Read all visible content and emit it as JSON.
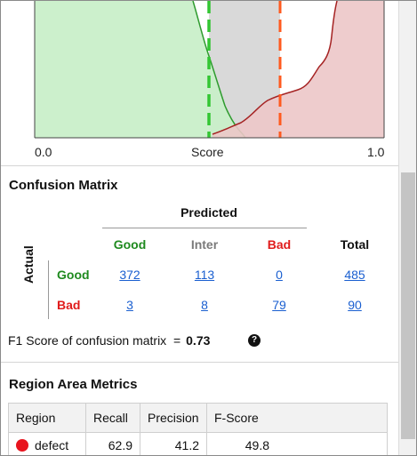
{
  "chart": {
    "xlabel": "Score",
    "x_min_label": "0.0",
    "x_max_label": "1.0",
    "colors": {
      "good": "#2e9b2e",
      "good_fill": "#c9efc9",
      "bad": "#a52323",
      "bad_fill": "#ecc6c8",
      "inter_fill": "#d9d9d9",
      "low_threshold": "#33c633",
      "high_threshold": "#ff5a1f"
    }
  },
  "confusion_matrix": {
    "title": "Confusion Matrix",
    "predicted_label": "Predicted",
    "actual_label": "Actual",
    "columns": [
      "Good",
      "Inter",
      "Bad",
      "Total"
    ],
    "rows": [
      {
        "label": "Good",
        "values": [
          "372",
          "113",
          "0",
          "485"
        ]
      },
      {
        "label": "Bad",
        "values": [
          "3",
          "8",
          "79",
          "90"
        ]
      }
    ],
    "colors": {
      "good": "#1f8a1f",
      "inter": "#7a7a7a",
      "bad": "#e01b1b"
    }
  },
  "f1": {
    "label": "F1 Score of confusion matrix  =",
    "value": "0.73",
    "help_icon": "question-icon"
  },
  "region_metrics": {
    "title": "Region Area Metrics",
    "headers": [
      "Region",
      "Recall",
      "Precision",
      "F-Score"
    ],
    "rows": [
      {
        "region": "defect",
        "recall": "62.9",
        "precision": "41.2",
        "fscore": "49.8",
        "color": "#e8141e"
      }
    ]
  }
}
